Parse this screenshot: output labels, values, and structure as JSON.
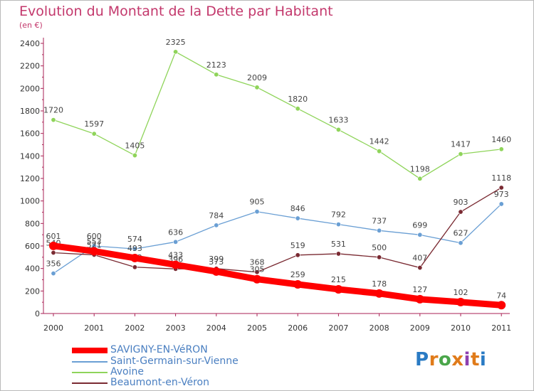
{
  "title": "Evolution du Montant de la Dette par Habitant",
  "subtitle": "(en €)",
  "brand": "Proxiti",
  "brand_colors": [
    "#2a7bc4",
    "#e07b1a",
    "#4aa64a",
    "#e07b1a",
    "#8e3fb0",
    "#e07b1a",
    "#2a7bc4"
  ],
  "chart_data": {
    "type": "line",
    "title": "Evolution du Montant de la Dette par Habitant",
    "subtitle": "(en €)",
    "xlabel": "",
    "ylabel": "",
    "categories": [
      "2000",
      "2001",
      "2002",
      "2003",
      "2004",
      "2005",
      "2006",
      "2007",
      "2008",
      "2009",
      "2010",
      "2011"
    ],
    "ylim": [
      0,
      2400
    ],
    "yticks": [
      "0",
      "200",
      "400",
      "600",
      "800",
      "1000",
      "1200",
      "1400",
      "1600",
      "1800",
      "2000",
      "2200",
      "2400"
    ],
    "grid": false,
    "legend_position": "bottom-left",
    "series": [
      {
        "name": "SAVIGNY-EN-VéRON",
        "color": "#ff0000",
        "values": [
          601,
          553,
          493,
          433,
          373,
          305,
          259,
          215,
          178,
          127,
          102,
          74
        ]
      },
      {
        "name": "Saint-Germain-sur-Vienne",
        "color": "#6a9fd4",
        "values": [
          356,
          600,
          574,
          636,
          784,
          905,
          846,
          792,
          737,
          699,
          627,
          973
        ]
      },
      {
        "name": "Avoine",
        "color": "#8fd45a",
        "values": [
          1720,
          1597,
          1405,
          2325,
          2123,
          2009,
          1820,
          1633,
          1442,
          1198,
          1417,
          1460
        ]
      },
      {
        "name": "Beaumont-en-Véron",
        "color": "#7a2a32",
        "values": [
          540,
          521,
          412,
          396,
          399,
          368,
          519,
          531,
          500,
          407,
          903,
          1118
        ]
      }
    ]
  }
}
